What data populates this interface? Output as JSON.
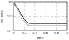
{
  "chart_data": {
    "type": "line",
    "x_label": "Beta",
    "y_label": "Rel. error",
    "x": [
      0,
      0.05,
      0.1,
      0.15,
      0.2,
      0.25,
      0.3,
      0.4,
      0.5,
      0.6,
      0.7,
      0.8,
      0.9,
      1
    ],
    "series": [
      {
        "color": "#000000",
        "line_style": "solid",
        "values": [
          1,
          0.5,
          0.25,
          0.12,
          0.06,
          0.035,
          0.03,
          0.03,
          0.03,
          0.03,
          0.03,
          0.03,
          0.03,
          0.03
        ]
      },
      {
        "color": "#888888",
        "line_style": "solid",
        "values": [
          0.8,
          0.4,
          0.18,
          0.08,
          0.04,
          0.025,
          0.022,
          0.022,
          0.022,
          0.022,
          0.022,
          0.022,
          0.022,
          0.022
        ]
      }
    ],
    "xlim": [
      0,
      1
    ],
    "xticks": [
      0,
      0.2,
      0.4,
      0.6,
      0.8,
      1
    ],
    "ylim": [
      0.01,
      1
    ],
    "yticks": [
      {
        "value": 0.01,
        "label": "10⁻²"
      },
      {
        "value": 0.1,
        "label": "10⁻¹"
      },
      {
        "value": 1,
        "label": "10⁰"
      }
    ],
    "log": "y",
    "grid": true
  }
}
